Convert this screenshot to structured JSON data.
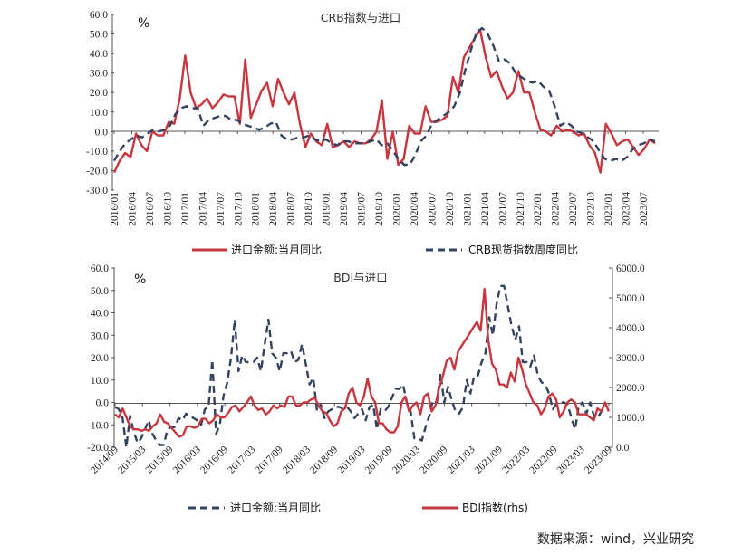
{
  "source": "数据来源：wind，兴业研究",
  "colors": {
    "red": "#c8373f",
    "navy": "#33425f"
  },
  "chart_data": [
    {
      "type": "line",
      "title": "CRB指数与进口",
      "unit": "%",
      "ylim": [
        -30,
        60
      ],
      "yticks": [
        "60.0",
        "50.0",
        "40.0",
        "30.0",
        "20.0",
        "10.0",
        "0.0",
        "-10.0",
        "-20.0",
        "-30.0"
      ],
      "xticks": [
        "2016/01",
        "2016/04",
        "2016/07",
        "2016/10",
        "2017/01",
        "2017/04",
        "2017/07",
        "2017/10",
        "2018/01",
        "2018/04",
        "2018/07",
        "2018/10",
        "2019/01",
        "2019/04",
        "2019/07",
        "2019/10",
        "2020/01",
        "2020/04",
        "2020/07",
        "2020/10",
        "2021/01",
        "2021/04",
        "2021/07",
        "2021/10",
        "2022/01",
        "2022/04",
        "2022/07",
        "2022/10",
        "2023/01",
        "2023/04",
        "2023/07"
      ],
      "x_start": "2016/01",
      "x_end": "2023/09",
      "series": [
        {
          "name": "进口金额:当月同比",
          "color": "red",
          "dash": false,
          "values": [
            -21,
            -15,
            -11,
            -13,
            -1,
            -7,
            -10,
            0,
            -2,
            -2,
            5,
            4,
            17,
            39,
            20,
            12,
            14,
            17,
            12,
            15,
            19,
            18,
            18,
            4,
            37,
            7,
            14,
            21,
            25,
            13,
            27,
            20,
            14,
            20,
            4,
            -8,
            -1,
            -5,
            -7,
            4,
            -8,
            -7,
            -5,
            -8,
            -5,
            -6,
            -6,
            -4,
            0,
            16,
            -14,
            0,
            -17,
            -14,
            3,
            -1,
            -1,
            13,
            5,
            5,
            6,
            8,
            28,
            20,
            38,
            43,
            48,
            52,
            38,
            28,
            31,
            23,
            17,
            20,
            31,
            20,
            20,
            10,
            1,
            0,
            -2,
            3,
            0,
            1,
            0,
            -2,
            -1,
            -7,
            -11,
            -21,
            4,
            -1,
            -7,
            -5,
            -4,
            -8,
            -12,
            -9,
            -4,
            -6
          ]
        },
        {
          "name": "CRB现货指数周度同比",
          "color": "navy",
          "dash": true,
          "values": [
            -15,
            -10,
            -6,
            -4,
            -2,
            -3,
            -1,
            1,
            0,
            1,
            3,
            9,
            12,
            13,
            12,
            12,
            3,
            6,
            7,
            8,
            8,
            6,
            6,
            4,
            3,
            2,
            1,
            2,
            4,
            5,
            -2,
            -4,
            -4,
            -3,
            -3,
            -2,
            -4,
            -5,
            -4,
            -6,
            -7,
            -5,
            -5,
            -6,
            -6,
            -6,
            -5,
            -4,
            -7,
            -6,
            -10,
            -14,
            -17,
            -17,
            -12,
            -5,
            -2,
            4,
            6,
            8,
            10,
            13,
            20,
            32,
            42,
            51,
            53,
            50,
            44,
            36,
            37,
            35,
            30,
            28,
            26,
            25,
            26,
            23,
            21,
            13,
            3,
            5,
            3,
            0,
            -1,
            -3,
            -5,
            -10,
            -14,
            -15,
            -14,
            -15,
            -13,
            -9,
            -7,
            -6,
            -4,
            -5
          ]
        }
      ]
    },
    {
      "type": "line",
      "title": "BDI与进口",
      "unit": "%",
      "ylim": [
        -20,
        60
      ],
      "ylim_right": [
        0,
        6000
      ],
      "yticks": [
        "60.0",
        "50.0",
        "40.0",
        "30.0",
        "20.0",
        "10.0",
        "0.0",
        "-10.0",
        "-20.0"
      ],
      "yticks_right": [
        "6000.0",
        "5000.0",
        "4000.0",
        "3000.0",
        "2000.0",
        "1000.0",
        "0.0"
      ],
      "xticks": [
        "2014/09",
        "2015/03",
        "2015/09",
        "2016/03",
        "2016/09",
        "2017/03",
        "2017/09",
        "2018/03",
        "2018/09",
        "2019/03",
        "2019/09",
        "2020/03",
        "2020/09",
        "2021/03",
        "2021/09",
        "2022/03",
        "2022/09",
        "2023/03",
        "2023/09"
      ],
      "x_start": "2014/09",
      "x_end": "2023/09",
      "series": [
        {
          "name": "进口金额:当月同比",
          "color": "navy",
          "dash": true,
          "axis": "left",
          "values": [
            -2,
            -3,
            -7,
            -20,
            -6,
            -13,
            -18,
            -16,
            -12,
            -8,
            -14,
            -17,
            -19,
            -19,
            -12,
            -11,
            -11,
            -7,
            -8,
            -5,
            -6,
            -7,
            -8,
            -10,
            -3,
            -2,
            19,
            -14,
            -10,
            3,
            9,
            20,
            37,
            14,
            21,
            18,
            18,
            18,
            20,
            14,
            26,
            37,
            22,
            20,
            14,
            22,
            22,
            23,
            18,
            19,
            26,
            17,
            8,
            11,
            -4,
            -1,
            -7,
            -4,
            -3,
            -2,
            -2,
            -3,
            -2,
            -4,
            -7,
            -5,
            -3,
            -8,
            -2,
            -1,
            -12,
            -3,
            -4,
            -2,
            2,
            6,
            6,
            8,
            0,
            -4,
            -16,
            -16,
            -17,
            -11,
            -6,
            1,
            0,
            13,
            0,
            7,
            1,
            -4,
            -5,
            -2,
            10,
            4,
            12,
            12,
            18,
            22,
            38,
            30,
            44,
            52,
            52,
            43,
            34,
            28,
            34,
            18,
            18,
            16,
            21,
            12,
            9,
            8,
            4,
            -3,
            -0.6,
            0,
            0,
            -1,
            -7,
            -12,
            -1,
            0,
            -5,
            0,
            -6,
            -7,
            -4,
            -3,
            -3
          ]
        },
        {
          "name": "BDI指数(rhs)",
          "color": "red",
          "dash": false,
          "axis": "right",
          "values": [
            1100,
            1000,
            1300,
            1000,
            700,
            600,
            600,
            550,
            600,
            550,
            700,
            800,
            1100,
            850,
            800,
            650,
            500,
            350,
            400,
            700,
            700,
            650,
            700,
            950,
            950,
            800,
            900,
            1100,
            1000,
            1000,
            1150,
            1350,
            1400,
            1200,
            1350,
            1500,
            1700,
            1400,
            1250,
            1300,
            1100,
            1200,
            1400,
            1300,
            1400,
            1350,
            1700,
            1700,
            1400,
            1400,
            1500,
            1500,
            1600,
            1650,
            1400,
            1200,
            1150,
            900,
            700,
            800,
            1200,
            1300,
            1800,
            2000,
            1500,
            1400,
            1700,
            2300,
            1700,
            1500,
            800,
            800,
            600,
            500,
            500,
            700,
            1500,
            1700,
            1200,
            1400,
            1500,
            1100,
            1700,
            1800,
            1200,
            1400,
            2000,
            2400,
            2900,
            3000,
            2600,
            3200,
            3400,
            3600,
            3800,
            4000,
            4200,
            3900,
            5300,
            3600,
            2800,
            2600,
            2100,
            2100,
            2000,
            2500,
            2200,
            3000,
            2600,
            2100,
            1800,
            1500,
            1400,
            1100,
            1300,
            1700,
            1800,
            1600,
            1000,
            1200,
            1500,
            1600,
            1500,
            1100,
            1100,
            1100,
            1000,
            900,
            1300,
            1200,
            1500,
            1200
          ]
        }
      ]
    }
  ]
}
